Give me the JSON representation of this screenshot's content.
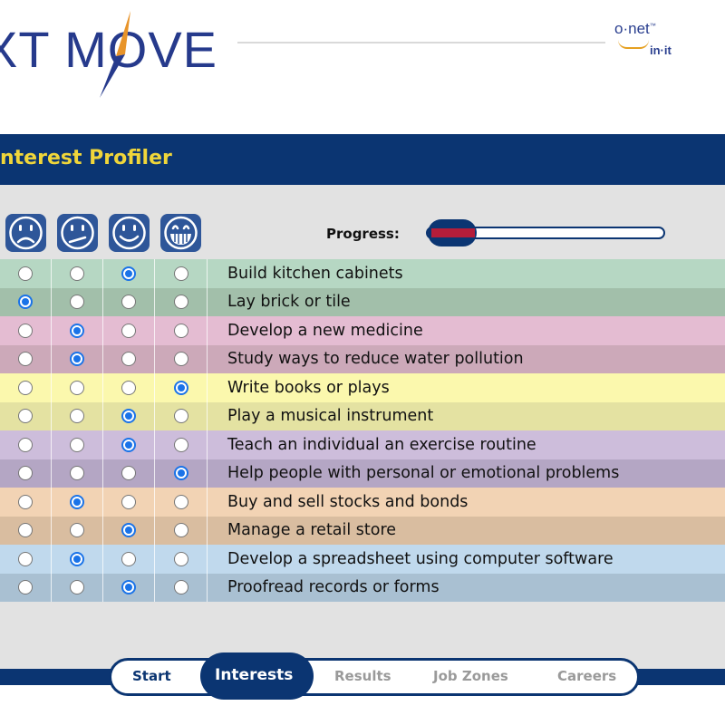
{
  "header": {
    "logo_text": "XT MOVE",
    "partner_logo_main": "o·net",
    "partner_logo_tm": "™",
    "partner_logo_sub": "in·it"
  },
  "profiler": {
    "title": "nterest Profiler",
    "faces": [
      "strongly-dislike-face-icon",
      "dislike-face-icon",
      "like-face-icon",
      "strongly-like-face-icon"
    ],
    "progress_label": "Progress:",
    "progress_fraction": 0.2,
    "colors": {
      "title_bar": "#0b3572",
      "title_text": "#f0d63a",
      "radio_selected": "#1a73e8",
      "progress_fill": "#b51d3a"
    },
    "rows": [
      {
        "text": "Build kitchen cabinets",
        "selected": 2,
        "color": "#b6d7c3"
      },
      {
        "text": "Lay brick or tile",
        "selected": 0,
        "color": "#a2bfaa"
      },
      {
        "text": "Develop a new medicine",
        "selected": 1,
        "color": "#e4bcd2"
      },
      {
        "text": "Study ways to reduce water pollution",
        "selected": 1,
        "color": "#cca9b9"
      },
      {
        "text": "Write books or plays",
        "selected": 3,
        "color": "#fbf8ad"
      },
      {
        "text": "Play a musical instrument",
        "selected": 2,
        "color": "#e4e2a2"
      },
      {
        "text": "Teach an individual an exercise routine",
        "selected": 2,
        "color": "#cdbddb"
      },
      {
        "text": "Help people with personal or emotional problems",
        "selected": 3,
        "color": "#b4a6c4"
      },
      {
        "text": "Buy and sell stocks and bonds",
        "selected": 1,
        "color": "#f2d3b4"
      },
      {
        "text": "Manage a retail store",
        "selected": 2,
        "color": "#d9bda0"
      },
      {
        "text": "Develop a spreadsheet using computer software",
        "selected": 1,
        "color": "#c0d9ed"
      },
      {
        "text": "Proofread records or forms",
        "selected": 2,
        "color": "#a9c0d2"
      }
    ]
  },
  "nav": {
    "start": "Start",
    "interests": "Interests",
    "results": "Results",
    "job_zones": "Job Zones",
    "careers": "Careers"
  }
}
